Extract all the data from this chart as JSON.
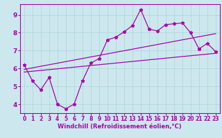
{
  "xlabel": "Windchill (Refroidissement éolien,°C)",
  "bg_color": "#cce8ee",
  "line_color": "#aa00aa",
  "grid_color": "#aad4d8",
  "x_data": [
    0,
    1,
    2,
    3,
    4,
    5,
    6,
    7,
    8,
    9,
    10,
    11,
    12,
    13,
    14,
    15,
    16,
    17,
    18,
    19,
    20,
    21,
    22,
    23
  ],
  "y_main": [
    6.2,
    5.3,
    4.8,
    5.5,
    4.0,
    3.75,
    4.0,
    5.3,
    6.3,
    6.55,
    7.6,
    7.75,
    8.05,
    8.4,
    9.3,
    8.2,
    8.1,
    8.45,
    8.5,
    8.55,
    8.0,
    7.1,
    7.4,
    6.95
  ],
  "trend1_x": [
    0,
    23
  ],
  "trend1_y": [
    5.95,
    7.95
  ],
  "trend2_x": [
    0,
    23
  ],
  "trend2_y": [
    5.8,
    6.85
  ],
  "xlim": [
    -0.5,
    23.5
  ],
  "ylim": [
    3.5,
    9.6
  ],
  "yticks": [
    4,
    5,
    6,
    7,
    8,
    9
  ],
  "xticks": [
    0,
    1,
    2,
    3,
    4,
    5,
    6,
    7,
    8,
    9,
    10,
    11,
    12,
    13,
    14,
    15,
    16,
    17,
    18,
    19,
    20,
    21,
    22,
    23
  ],
  "tick_fontsize": 5.5,
  "xlabel_fontsize": 6.0,
  "lw": 0.9,
  "ms": 3.5
}
